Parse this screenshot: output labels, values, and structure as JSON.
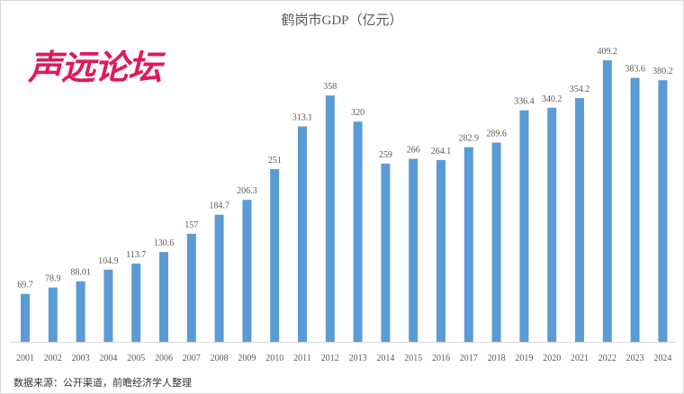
{
  "chart_data": {
    "type": "bar",
    "title": "鹤岗市GDP（亿元）",
    "categories": [
      "2001",
      "2002",
      "2003",
      "2004",
      "2005",
      "2006",
      "2007",
      "2008",
      "2009",
      "2010",
      "2011",
      "2012",
      "2013",
      "2014",
      "2015",
      "2016",
      "2017",
      "2018",
      "2019",
      "2020",
      "2021",
      "2022",
      "2023",
      "2024"
    ],
    "values": [
      69.7,
      78.9,
      88.01,
      104.9,
      113.7,
      130.6,
      157,
      184.7,
      206.3,
      251,
      313.1,
      358,
      320,
      259,
      266,
      264.1,
      282.9,
      289.6,
      336.4,
      340.2,
      354.2,
      409.2,
      383.6,
      380.2
    ],
    "data_labels": [
      "69.7",
      "78.9",
      "88.01",
      "104.9",
      "113.7",
      "130.6",
      "157",
      "184.7",
      "206.3",
      "251",
      "313.1",
      "358",
      "320",
      "259",
      "266",
      "264.1",
      "282.9",
      "289.6",
      "336.4",
      "340.2",
      "354.2",
      "409.2",
      "383.6",
      "380.2"
    ],
    "ylim": [
      0,
      420
    ],
    "grid": false,
    "bar_color": "#5b9bd5"
  },
  "source": "数据来源：公开渠道，前瞻经济学人整理",
  "watermark": "声远论坛"
}
